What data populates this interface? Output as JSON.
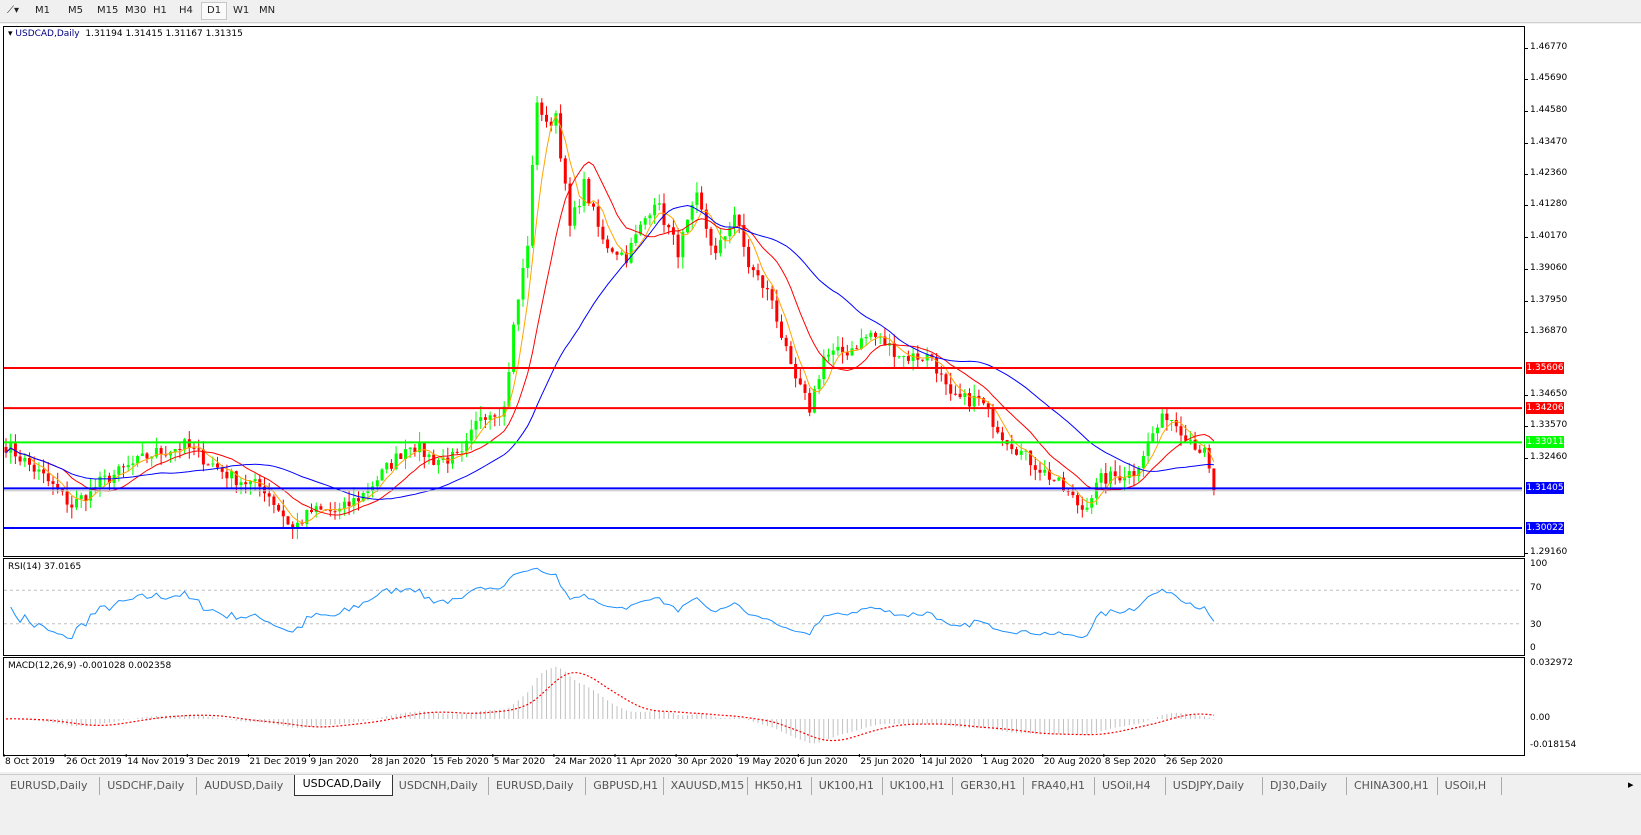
{
  "toolbar": {
    "timeframes": [
      "M1",
      "M5",
      "M15",
      "M30",
      "H1",
      "H4",
      "D1",
      "W1",
      "MN"
    ],
    "active": "D1"
  },
  "chart": {
    "title": "USDCAD,Daily",
    "ohlc": "1.31194 1.31415 1.31167 1.31315"
  },
  "price_axis": [
    "1.46770",
    "1.45690",
    "1.44580",
    "1.43470",
    "1.42360",
    "1.41280",
    "1.40170",
    "1.39060",
    "1.37950",
    "1.36870",
    "1.34650",
    "1.33570",
    "1.32460",
    "1.29160"
  ],
  "hlines": [
    {
      "price": 1.35606,
      "label": "1.35606",
      "color": "#ff0000"
    },
    {
      "price": 1.34206,
      "label": "1.34206",
      "color": "#ff0000"
    },
    {
      "price": 1.33011,
      "label": "1.33011",
      "color": "#00ff00"
    },
    {
      "price": 1.31405,
      "label": "1.31405",
      "color": "#0000ff"
    },
    {
      "price": 1.30022,
      "label": "1.30022",
      "color": "#0000ff"
    }
  ],
  "rsi": {
    "label": "RSI(14) 37.0165",
    "levels": [
      "100",
      "70",
      "30",
      "0"
    ]
  },
  "macd": {
    "label": "MACD(12,26,9) -0.001028 0.002358",
    "levels": [
      "0.032972",
      "0.00",
      "-0.018154"
    ]
  },
  "x_axis": [
    "8 Oct 2019",
    "26 Oct 2019",
    "14 Nov 2019",
    "3 Dec 2019",
    "21 Dec 2019",
    "9 Jan 2020",
    "28 Jan 2020",
    "15 Feb 2020",
    "5 Mar 2020",
    "24 Mar 2020",
    "11 Apr 2020",
    "30 Apr 2020",
    "19 May 2020",
    "6 Jun 2020",
    "25 Jun 2020",
    "14 Jul 2020",
    "1 Aug 2020",
    "20 Aug 2020",
    "8 Sep 2020",
    "26 Sep 2020"
  ],
  "tabs": [
    "EURUSD,Daily",
    "USDCHF,Daily",
    "AUDUSD,Daily",
    "USDCAD,Daily",
    "USDCNH,Daily",
    "EURUSD,Daily",
    "GBPUSD,H1",
    "XAUUSD,M15",
    "HK50,H1",
    "UK100,H1",
    "UK100,H1",
    "GER30,H1",
    "FRA40,H1",
    "USOil,H4",
    "USDJPY,Daily",
    "DJ30,Daily",
    "CHINA300,H1",
    "USOil,H"
  ],
  "active_tab": "USDCAD,Daily",
  "colors": {
    "bull": "#00ff00",
    "bear": "#ff0000",
    "ma_fast": "#ffa500",
    "ma_mid": "#ff0000",
    "ma_slow": "#0000ff",
    "rsi": "#1e90ff",
    "macd_hist": "#c0c0c0",
    "macd_signal": "#ff0000"
  },
  "chart_data": {
    "type": "candlestick",
    "symbol": "USDCAD",
    "timeframe": "Daily",
    "close_points": [
      [
        0,
        1.329
      ],
      [
        8,
        1.318
      ],
      [
        14,
        1.308
      ],
      [
        20,
        1.316
      ],
      [
        31,
        1.326
      ],
      [
        38,
        1.329
      ],
      [
        48,
        1.318
      ],
      [
        55,
        1.314
      ],
      [
        61,
        1.3
      ],
      [
        65,
        1.306
      ],
      [
        71,
        1.306
      ],
      [
        76,
        1.312
      ],
      [
        86,
        1.33
      ],
      [
        91,
        1.324
      ],
      [
        97,
        1.325
      ],
      [
        101,
        1.34
      ],
      [
        106,
        1.342
      ],
      [
        108,
        1.37
      ],
      [
        111,
        1.4
      ],
      [
        113,
        1.45
      ],
      [
        115,
        1.44
      ],
      [
        117,
        1.445
      ],
      [
        120,
        1.405
      ],
      [
        123,
        1.42
      ],
      [
        127,
        1.4
      ],
      [
        132,
        1.395
      ],
      [
        138,
        1.415
      ],
      [
        143,
        1.397
      ],
      [
        147,
        1.415
      ],
      [
        151,
        1.395
      ],
      [
        155,
        1.41
      ],
      [
        158,
        1.392
      ],
      [
        163,
        1.38
      ],
      [
        167,
        1.355
      ],
      [
        171,
        1.342
      ],
      [
        174,
        1.36
      ],
      [
        179,
        1.362
      ],
      [
        184,
        1.368
      ],
      [
        191,
        1.36
      ],
      [
        197,
        1.36
      ],
      [
        201,
        1.345
      ],
      [
        207,
        1.345
      ],
      [
        212,
        1.333
      ],
      [
        217,
        1.325
      ],
      [
        223,
        1.317
      ],
      [
        229,
        1.307
      ],
      [
        233,
        1.317
      ],
      [
        240,
        1.32
      ],
      [
        244,
        1.333
      ],
      [
        247,
        1.34
      ],
      [
        250,
        1.335
      ],
      [
        255,
        1.326
      ],
      [
        257,
        1.3132
      ]
    ]
  }
}
